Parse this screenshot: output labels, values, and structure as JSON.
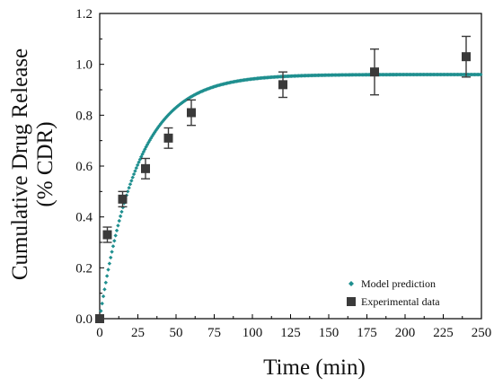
{
  "chart_data": {
    "type": "scatter",
    "title": "",
    "xlabel": "Time (min)",
    "ylabel_lines": [
      "Cumulative Drug Release",
      "(% CDR)"
    ],
    "xlim": [
      0,
      250
    ],
    "ylim": [
      0.0,
      1.2
    ],
    "xticks": [
      0,
      25,
      50,
      75,
      100,
      125,
      150,
      175,
      200,
      225,
      250
    ],
    "yticks": [
      0.0,
      0.2,
      0.4,
      0.6,
      0.8,
      1.0,
      1.2
    ],
    "ytick_labels": [
      "0.0",
      "0.2",
      "0.4",
      "0.6",
      "0.8",
      "1.0",
      "1.2"
    ],
    "grid": false,
    "legend_position": "bottom-right",
    "series": [
      {
        "name": "Model prediction",
        "kind": "model-curve",
        "color": "#1f8f8f",
        "marker": "diamond",
        "equation": "y = 0.96 * (1 - exp(-0.04 * t))",
        "plateau": 0.96,
        "rate": 0.04,
        "x_range": [
          0,
          250
        ]
      },
      {
        "name": "Experimental data",
        "kind": "points-with-error",
        "color": "#3a3a3a",
        "marker": "square",
        "x": [
          0,
          5,
          15,
          30,
          45,
          60,
          120,
          180,
          240
        ],
        "y": [
          0.0,
          0.33,
          0.47,
          0.59,
          0.71,
          0.81,
          0.92,
          0.97,
          1.03
        ],
        "yerr": [
          0.0,
          0.03,
          0.03,
          0.04,
          0.04,
          0.05,
          0.05,
          0.09,
          0.08
        ]
      }
    ]
  }
}
